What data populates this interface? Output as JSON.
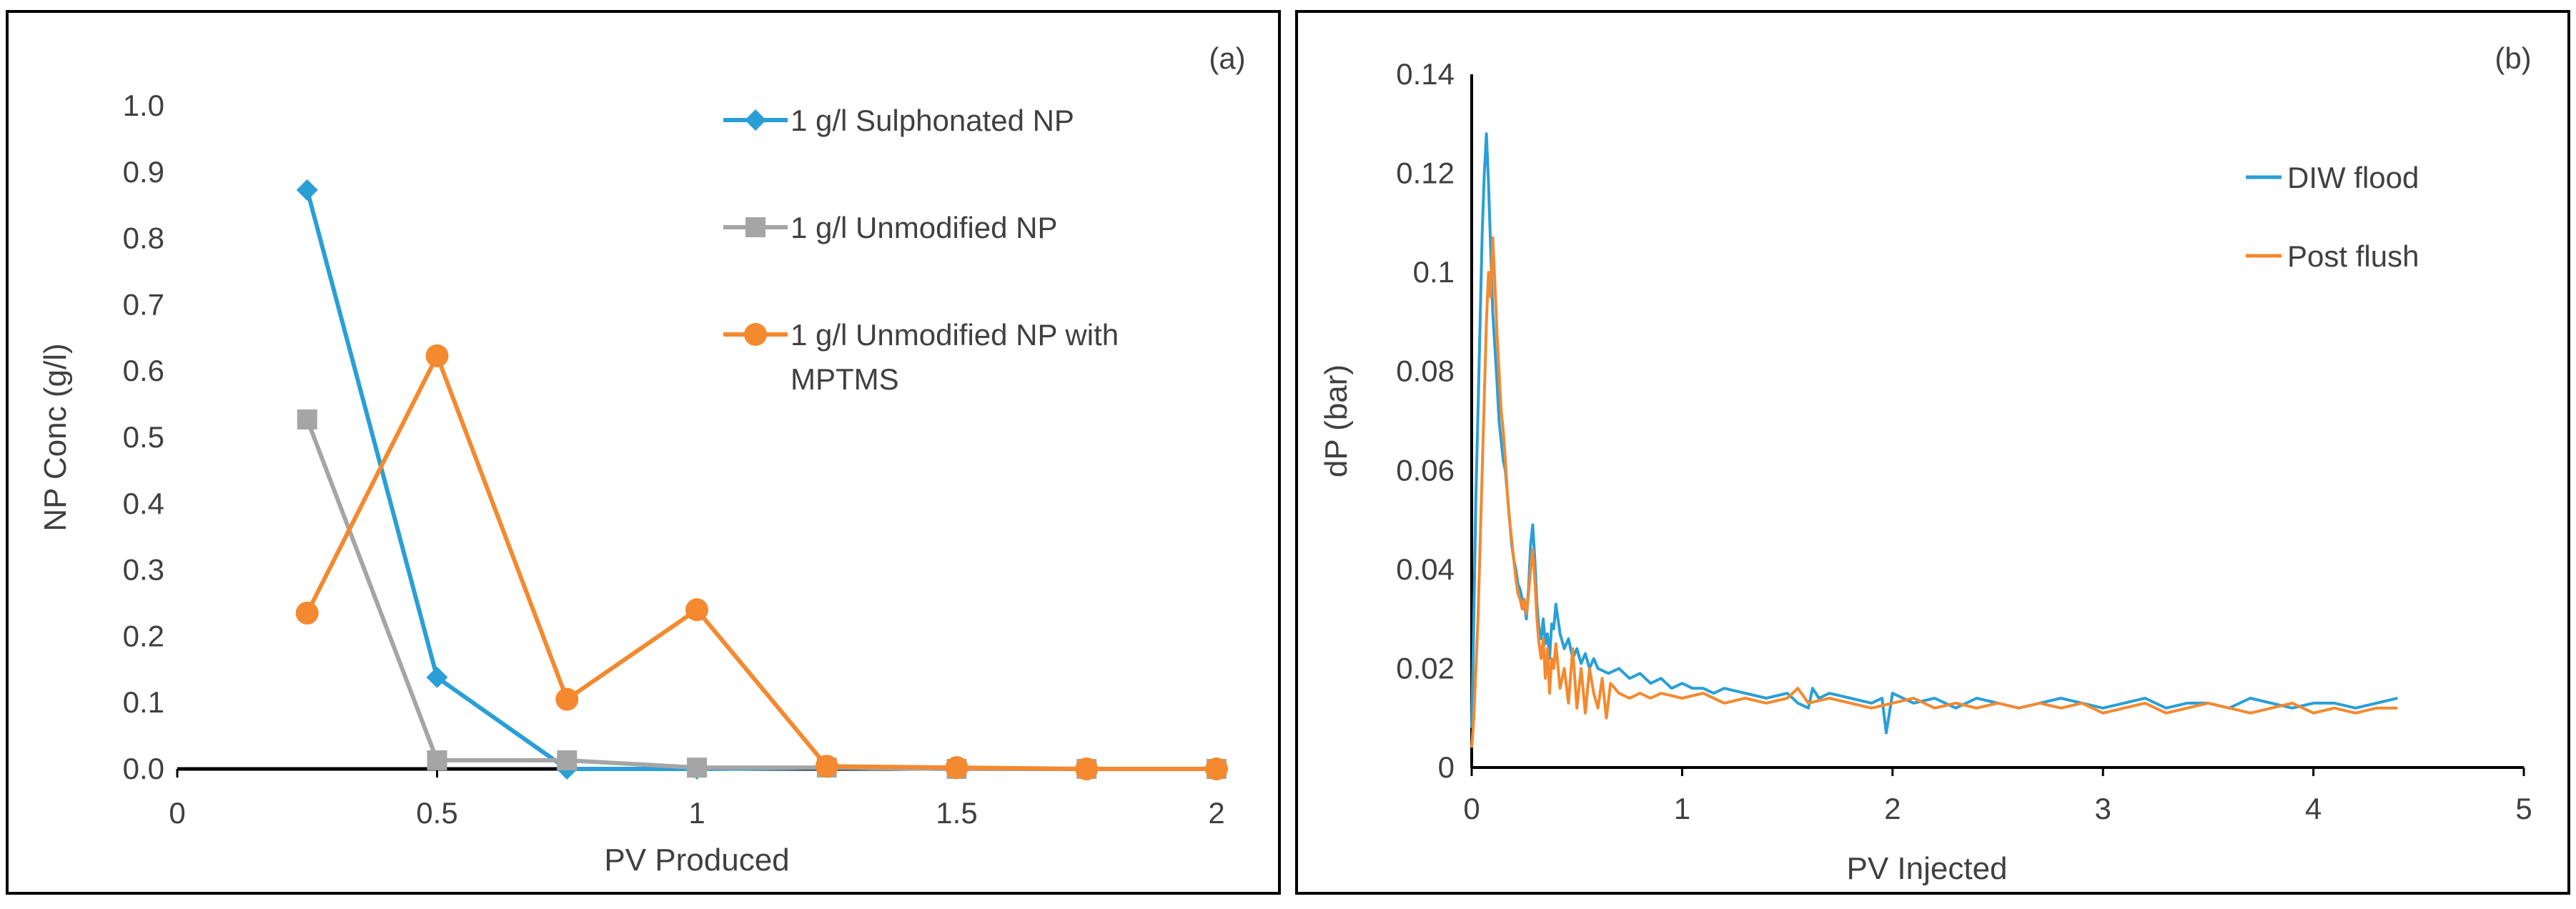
{
  "chart_data": [
    {
      "type": "line",
      "panel_label": "(a)",
      "xlabel": "PV Produced",
      "ylabel": "NP Conc (g/l)",
      "xlim": [
        0,
        2
      ],
      "ylim": [
        0,
        1
      ],
      "xticks": [
        "0",
        "0.5",
        "1",
        "1.5",
        "2"
      ],
      "yticks": [
        "0.0",
        "0.1",
        "0.2",
        "0.3",
        "0.4",
        "0.5",
        "0.6",
        "0.7",
        "0.8",
        "0.9",
        "1.0"
      ],
      "legend_position": "top-right",
      "series": [
        {
          "name": "1 g/l Sulphonated NP",
          "legend_lines": [
            "1 g/l Sulphonated NP"
          ],
          "color": "#2a9fd6",
          "marker": "diamond",
          "x": [
            0.25,
            0.5,
            0.75,
            1.0,
            1.25,
            1.5,
            1.75,
            2.0
          ],
          "y": [
            0.873,
            0.138,
            0.0,
            0.0,
            0.002,
            0.0,
            0.0,
            0.0
          ]
        },
        {
          "name": "1 g/l Unmodified NP",
          "legend_lines": [
            "1 g/l Unmodified NP"
          ],
          "color": "#a5a5a5",
          "marker": "square",
          "x": [
            0.25,
            0.5,
            0.75,
            1.0,
            1.25,
            1.5,
            1.75,
            2.0
          ],
          "y": [
            0.527,
            0.013,
            0.013,
            0.002,
            0.002,
            0.0,
            0.0,
            0.0
          ]
        },
        {
          "name": "1 g/l Unmodified NP with MPTMS",
          "legend_lines": [
            "1 g/l Unmodified NP with",
            "MPTMS"
          ],
          "color": "#f4892f",
          "marker": "circle",
          "x": [
            0.25,
            0.5,
            0.75,
            1.0,
            1.25,
            1.5,
            1.75,
            2.0
          ],
          "y": [
            0.235,
            0.623,
            0.105,
            0.24,
            0.004,
            0.002,
            0.0,
            0.0
          ]
        }
      ]
    },
    {
      "type": "line",
      "panel_label": "(b)",
      "xlabel": "PV Injected",
      "ylabel": "dP (bar)",
      "xlim": [
        0,
        5
      ],
      "ylim": [
        0,
        0.14
      ],
      "xticks": [
        "0",
        "1",
        "2",
        "3",
        "4",
        "5"
      ],
      "yticks": [
        "0",
        "0.02",
        "0.04",
        "0.06",
        "0.08",
        "0.1",
        "0.12",
        "0.14"
      ],
      "legend_position": "top-right",
      "series": [
        {
          "name": "DIW flood",
          "color": "#2a9fd6",
          "x": [
            0.0,
            0.01,
            0.02,
            0.03,
            0.04,
            0.05,
            0.06,
            0.07,
            0.08,
            0.09,
            0.1,
            0.11,
            0.12,
            0.13,
            0.14,
            0.15,
            0.16,
            0.17,
            0.18,
            0.19,
            0.2,
            0.21,
            0.22,
            0.23,
            0.24,
            0.25,
            0.26,
            0.27,
            0.28,
            0.29,
            0.3,
            0.31,
            0.32,
            0.33,
            0.34,
            0.35,
            0.36,
            0.37,
            0.38,
            0.39,
            0.4,
            0.42,
            0.44,
            0.46,
            0.48,
            0.5,
            0.52,
            0.54,
            0.56,
            0.58,
            0.6,
            0.65,
            0.7,
            0.75,
            0.8,
            0.85,
            0.9,
            0.95,
            1.0,
            1.05,
            1.1,
            1.15,
            1.2,
            1.3,
            1.4,
            1.5,
            1.55,
            1.6,
            1.62,
            1.65,
            1.7,
            1.8,
            1.9,
            1.95,
            1.97,
            2.0,
            2.1,
            2.2,
            2.3,
            2.4,
            2.5,
            2.6,
            2.7,
            2.8,
            2.9,
            3.0,
            3.1,
            3.2,
            3.3,
            3.4,
            3.5,
            3.6,
            3.7,
            3.8,
            3.9,
            4.0,
            4.1,
            4.2,
            4.3,
            4.4
          ],
          "y": [
            0.008,
            0.03,
            0.055,
            0.072,
            0.09,
            0.108,
            0.12,
            0.128,
            0.118,
            0.105,
            0.092,
            0.085,
            0.078,
            0.07,
            0.066,
            0.062,
            0.06,
            0.055,
            0.05,
            0.045,
            0.042,
            0.04,
            0.037,
            0.036,
            0.034,
            0.033,
            0.03,
            0.036,
            0.045,
            0.049,
            0.042,
            0.033,
            0.028,
            0.026,
            0.03,
            0.025,
            0.027,
            0.022,
            0.029,
            0.028,
            0.033,
            0.027,
            0.024,
            0.026,
            0.022,
            0.024,
            0.021,
            0.023,
            0.02,
            0.022,
            0.02,
            0.019,
            0.02,
            0.018,
            0.019,
            0.017,
            0.018,
            0.016,
            0.017,
            0.016,
            0.016,
            0.015,
            0.016,
            0.015,
            0.014,
            0.015,
            0.013,
            0.012,
            0.016,
            0.014,
            0.015,
            0.014,
            0.013,
            0.014,
            0.007,
            0.015,
            0.013,
            0.014,
            0.012,
            0.014,
            0.013,
            0.012,
            0.013,
            0.014,
            0.013,
            0.012,
            0.013,
            0.014,
            0.012,
            0.013,
            0.013,
            0.012,
            0.014,
            0.013,
            0.012,
            0.013,
            0.013,
            0.012,
            0.013,
            0.014
          ]
        },
        {
          "name": "Post flush",
          "color": "#f4892f",
          "x": [
            0.0,
            0.01,
            0.02,
            0.03,
            0.04,
            0.05,
            0.06,
            0.07,
            0.08,
            0.09,
            0.1,
            0.11,
            0.12,
            0.13,
            0.14,
            0.15,
            0.16,
            0.17,
            0.18,
            0.19,
            0.2,
            0.21,
            0.22,
            0.23,
            0.24,
            0.25,
            0.26,
            0.27,
            0.28,
            0.29,
            0.3,
            0.31,
            0.32,
            0.33,
            0.34,
            0.35,
            0.36,
            0.37,
            0.38,
            0.39,
            0.4,
            0.42,
            0.44,
            0.46,
            0.48,
            0.5,
            0.52,
            0.54,
            0.56,
            0.58,
            0.6,
            0.62,
            0.64,
            0.66,
            0.7,
            0.75,
            0.8,
            0.85,
            0.9,
            1.0,
            1.1,
            1.2,
            1.3,
            1.4,
            1.5,
            1.55,
            1.6,
            1.7,
            1.8,
            1.9,
            2.0,
            2.1,
            2.2,
            2.3,
            2.4,
            2.5,
            2.6,
            2.7,
            2.8,
            2.9,
            3.0,
            3.1,
            3.2,
            3.3,
            3.4,
            3.5,
            3.6,
            3.7,
            3.8,
            3.9,
            4.0,
            4.1,
            4.2,
            4.3,
            4.4
          ],
          "y": [
            0.004,
            0.01,
            0.02,
            0.03,
            0.045,
            0.06,
            0.075,
            0.09,
            0.1,
            0.095,
            0.107,
            0.098,
            0.088,
            0.08,
            0.072,
            0.068,
            0.062,
            0.055,
            0.05,
            0.046,
            0.042,
            0.038,
            0.035,
            0.034,
            0.032,
            0.034,
            0.031,
            0.035,
            0.04,
            0.044,
            0.038,
            0.03,
            0.025,
            0.022,
            0.026,
            0.018,
            0.024,
            0.015,
            0.022,
            0.02,
            0.025,
            0.016,
            0.02,
            0.013,
            0.024,
            0.012,
            0.02,
            0.011,
            0.02,
            0.015,
            0.012,
            0.018,
            0.01,
            0.017,
            0.015,
            0.014,
            0.015,
            0.014,
            0.015,
            0.014,
            0.015,
            0.013,
            0.014,
            0.013,
            0.014,
            0.016,
            0.013,
            0.014,
            0.013,
            0.012,
            0.013,
            0.014,
            0.012,
            0.013,
            0.012,
            0.013,
            0.012,
            0.013,
            0.012,
            0.013,
            0.011,
            0.012,
            0.013,
            0.011,
            0.012,
            0.013,
            0.012,
            0.011,
            0.012,
            0.013,
            0.011,
            0.012,
            0.011,
            0.012,
            0.012
          ]
        }
      ]
    }
  ]
}
